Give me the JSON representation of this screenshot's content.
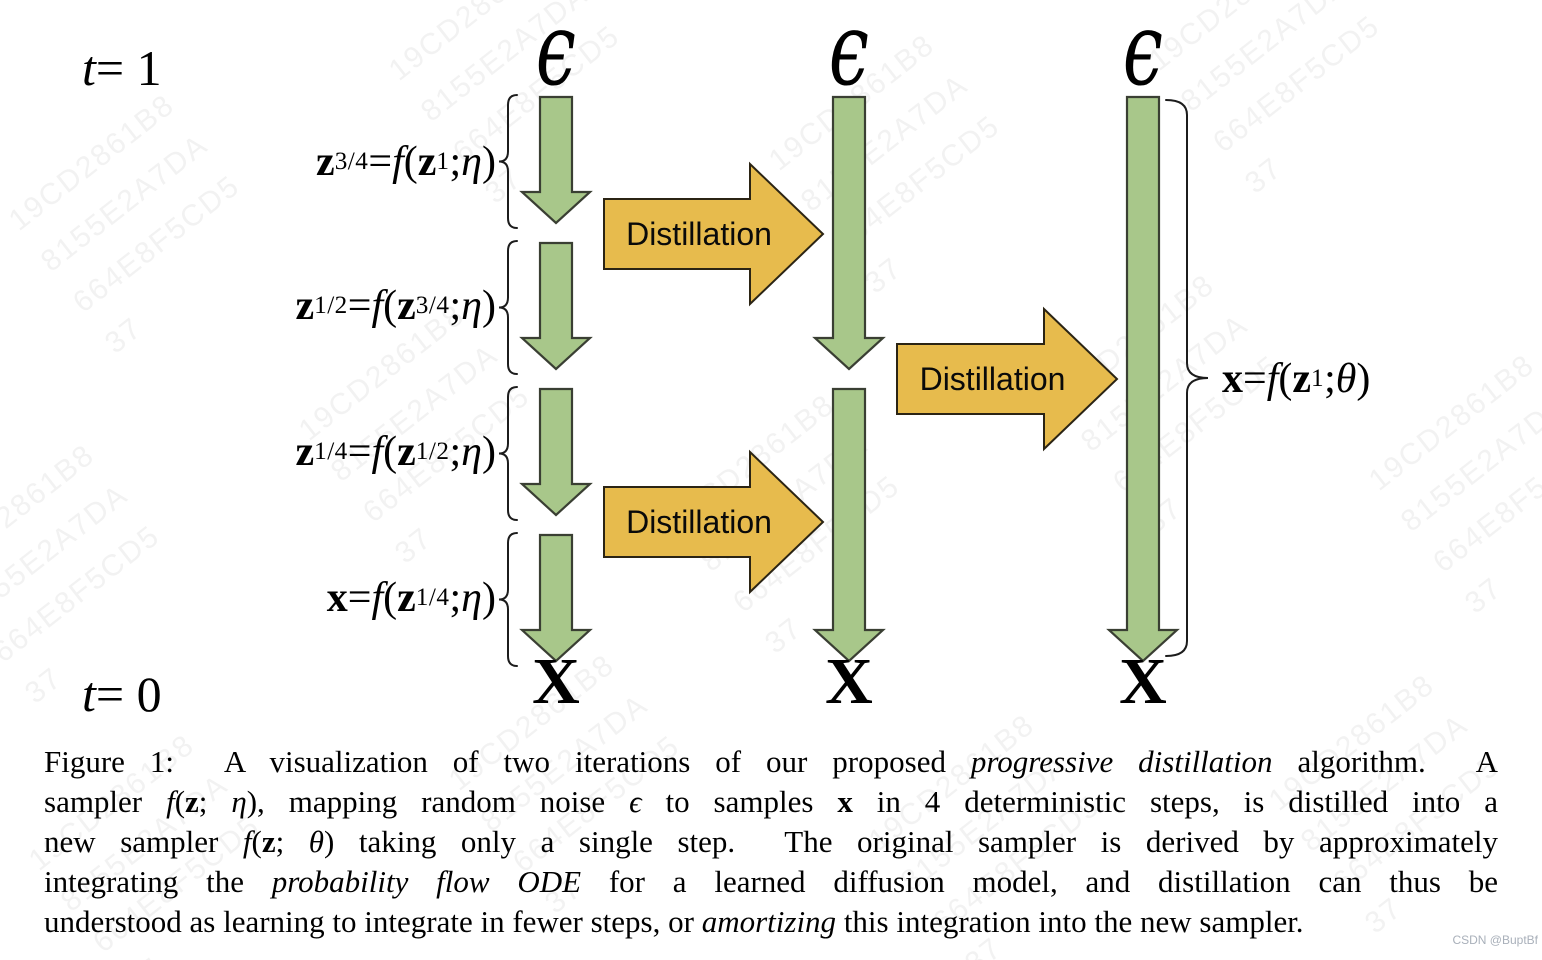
{
  "figure": {
    "t_top_segments": [
      {
        "t": "t",
        "s": "i"
      },
      {
        "t": " = 1",
        "s": "r"
      }
    ],
    "t_bottom_segments": [
      {
        "t": "t",
        "s": "i"
      },
      {
        "t": " = 0",
        "s": "r"
      }
    ],
    "noise_symbol": "ϵ",
    "sample_symbol": "X",
    "columns": [
      {
        "name": "four-step-sampler",
        "steps": 4
      },
      {
        "name": "two-step-sampler",
        "steps": 2
      },
      {
        "name": "one-step-sampler",
        "steps": 1
      }
    ],
    "step_labels": [
      {
        "segments": [
          {
            "t": "z",
            "s": "b"
          },
          {
            "t": "3/4",
            "s": "s"
          },
          {
            "t": " = ",
            "s": "r"
          },
          {
            "t": "f",
            "s": "i"
          },
          {
            "t": "(",
            "s": "r"
          },
          {
            "t": "z",
            "s": "b"
          },
          {
            "t": "1",
            "s": "s"
          },
          {
            "t": "; ",
            "s": "r"
          },
          {
            "t": "η",
            "s": "i"
          },
          {
            "t": ")",
            "s": "r"
          }
        ]
      },
      {
        "segments": [
          {
            "t": "z",
            "s": "b"
          },
          {
            "t": "1/2",
            "s": "s"
          },
          {
            "t": " = ",
            "s": "r"
          },
          {
            "t": "f",
            "s": "i"
          },
          {
            "t": "(",
            "s": "r"
          },
          {
            "t": "z",
            "s": "b"
          },
          {
            "t": "3/4",
            "s": "s"
          },
          {
            "t": "; ",
            "s": "r"
          },
          {
            "t": "η",
            "s": "i"
          },
          {
            "t": ")",
            "s": "r"
          }
        ]
      },
      {
        "segments": [
          {
            "t": "z",
            "s": "b"
          },
          {
            "t": "1/4",
            "s": "s"
          },
          {
            "t": " = ",
            "s": "r"
          },
          {
            "t": "f",
            "s": "i"
          },
          {
            "t": "(",
            "s": "r"
          },
          {
            "t": "z",
            "s": "b"
          },
          {
            "t": "1/2",
            "s": "s"
          },
          {
            "t": "; ",
            "s": "r"
          },
          {
            "t": "η",
            "s": "i"
          },
          {
            "t": ")",
            "s": "r"
          }
        ]
      },
      {
        "segments": [
          {
            "t": "x",
            "s": "b"
          },
          {
            "t": " = ",
            "s": "r"
          },
          {
            "t": "f",
            "s": "i"
          },
          {
            "t": "(",
            "s": "r"
          },
          {
            "t": "z",
            "s": "b"
          },
          {
            "t": "1/4",
            "s": "s"
          },
          {
            "t": "; ",
            "s": "r"
          },
          {
            "t": "η",
            "s": "i"
          },
          {
            "t": ")",
            "s": "r"
          }
        ]
      }
    ],
    "distilled_label_segments": [
      {
        "t": "x",
        "s": "b"
      },
      {
        "t": " = ",
        "s": "r"
      },
      {
        "t": "f",
        "s": "i"
      },
      {
        "t": "(",
        "s": "r"
      },
      {
        "t": "z",
        "s": "b"
      },
      {
        "t": "1",
        "s": "s"
      },
      {
        "t": "; ",
        "s": "r"
      },
      {
        "t": "θ",
        "s": "i"
      },
      {
        "t": ")",
        "s": "r"
      }
    ],
    "distillation_arrows": [
      {
        "label": "Distillation",
        "from_column": 0,
        "to_column": 1,
        "row": "upper"
      },
      {
        "label": "Distillation",
        "from_column": 0,
        "to_column": 1,
        "row": "lower"
      },
      {
        "label": "Distillation",
        "from_column": 1,
        "to_column": 2,
        "row": "middle"
      }
    ]
  },
  "caption": {
    "lines": [
      {
        "last": false,
        "segments": [
          {
            "t": "Figure 1:  A visualization of two iterations of our proposed ",
            "s": "r"
          },
          {
            "t": "progressive distillation",
            "s": "i"
          },
          {
            "t": " algorithm.  A",
            "s": "r"
          }
        ]
      },
      {
        "last": false,
        "segments": [
          {
            "t": "sampler ",
            "s": "r"
          },
          {
            "t": "f",
            "s": "i"
          },
          {
            "t": "(",
            "s": "r"
          },
          {
            "t": "z",
            "s": "b"
          },
          {
            "t": "; ",
            "s": "r"
          },
          {
            "t": "η",
            "s": "i"
          },
          {
            "t": "), mapping random noise ",
            "s": "r"
          },
          {
            "t": "ϵ",
            "s": "i"
          },
          {
            "t": " to samples ",
            "s": "r"
          },
          {
            "t": "x",
            "s": "b"
          },
          {
            "t": " in 4 deterministic steps, is distilled into a",
            "s": "r"
          }
        ]
      },
      {
        "last": false,
        "segments": [
          {
            "t": "new sampler ",
            "s": "r"
          },
          {
            "t": "f",
            "s": "i"
          },
          {
            "t": "(",
            "s": "r"
          },
          {
            "t": "z",
            "s": "b"
          },
          {
            "t": "; ",
            "s": "r"
          },
          {
            "t": "θ",
            "s": "i"
          },
          {
            "t": ") taking only a single step.  The original sampler is derived by approximately",
            "s": "r"
          }
        ]
      },
      {
        "last": false,
        "segments": [
          {
            "t": "integrating the ",
            "s": "r"
          },
          {
            "t": "probability flow ODE",
            "s": "i"
          },
          {
            "t": " for a learned diffusion model, and distillation can thus be",
            "s": "r"
          }
        ]
      },
      {
        "last": true,
        "segments": [
          {
            "t": "understood as learning to integrate in fewer steps, or ",
            "s": "r"
          },
          {
            "t": "amortizing",
            "s": "i"
          },
          {
            "t": " this integration into the new sampler.",
            "s": "r"
          }
        ]
      }
    ]
  },
  "watermark": {
    "diagonal_lines": [
      "19CD2861B8",
      "8155E2A7DA",
      "664E8F5CD5",
      "37"
    ],
    "credit": "CSDN @BuptBf"
  },
  "colors": {
    "arrow_green": "#a8c78a",
    "arrow_green_stroke": "#3a3f33",
    "distill_yellow": "#e7bb4d",
    "distill_stroke": "#2b2414",
    "brace_black": "#1c1c1c",
    "text_black": "#000000"
  }
}
